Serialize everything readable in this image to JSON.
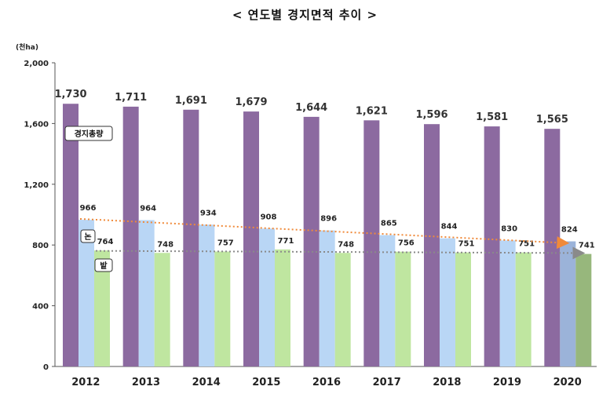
{
  "chart_data": {
    "type": "bar",
    "title": "< 연도별 경지면적 추이 >",
    "ylabel": "(천ha)",
    "categories": [
      "2012",
      "2013",
      "2014",
      "2015",
      "2016",
      "2017",
      "2018",
      "2019",
      "2020"
    ],
    "ylim": [
      0,
      2000
    ],
    "yticks": [
      "0",
      "400",
      "800",
      "1,200",
      "1,600",
      "2,000"
    ],
    "series": [
      {
        "name": "경지총량",
        "values": [
          1730,
          1711,
          1691,
          1679,
          1644,
          1621,
          1596,
          1581,
          1565
        ],
        "labels": [
          "1,730",
          "1,711",
          "1,691",
          "1,679",
          "1,644",
          "1,621",
          "1,596",
          "1,581",
          "1,565"
        ],
        "color": "#8c6aa0"
      },
      {
        "name": "논",
        "values": [
          966,
          964,
          934,
          908,
          896,
          865,
          844,
          830,
          824
        ],
        "labels": [
          "966",
          "964",
          "934",
          "908",
          "896",
          "865",
          "844",
          "830",
          "824"
        ],
        "color": "#b9d6f5",
        "last_color": "#9bb3d9"
      },
      {
        "name": "밭",
        "values": [
          764,
          748,
          757,
          771,
          748,
          756,
          751,
          751,
          741
        ],
        "labels": [
          "764",
          "748",
          "757",
          "771",
          "748",
          "756",
          "751",
          "751",
          "741"
        ],
        "color": "#bfe6a0",
        "last_color": "#97b77c"
      }
    ],
    "trendlines": [
      {
        "series": "논",
        "color": "#f08a3a"
      },
      {
        "series": "밭",
        "color": "#8a8a8a"
      }
    ],
    "grid": false,
    "legend": "callouts"
  }
}
